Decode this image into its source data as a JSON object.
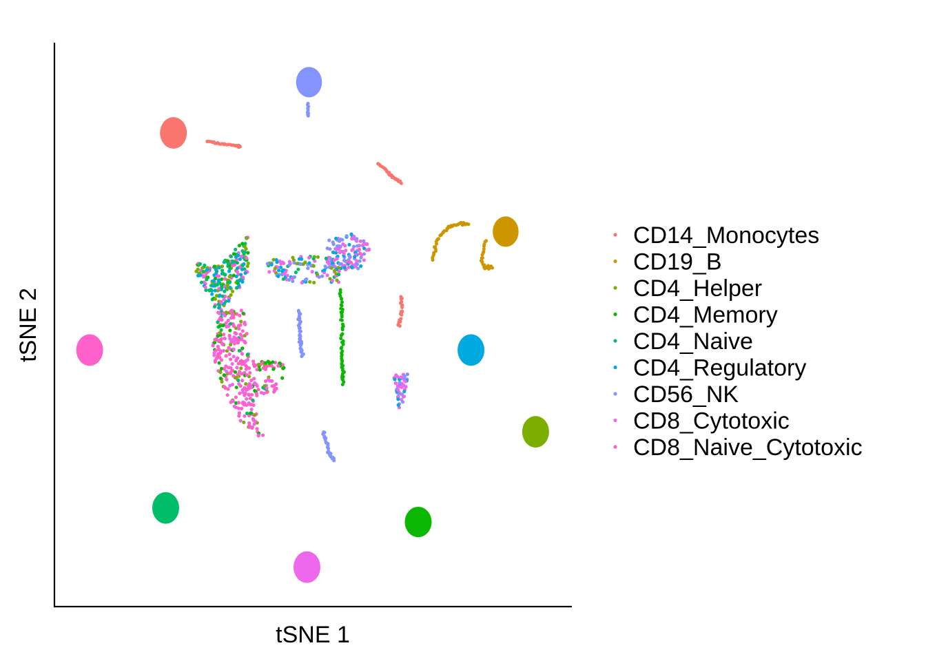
{
  "chart_data": {
    "type": "scatter",
    "xlabel": "tSNE 1",
    "ylabel": "tSNE 2",
    "xlim": [
      0,
      100
    ],
    "ylim": [
      0,
      100
    ],
    "grid": false,
    "ticks": false,
    "legend_position": "right",
    "series": [
      {
        "name": "CD14_Monocytes",
        "color": "#F8766D",
        "blobs": [
          {
            "x": 23,
            "y": 84,
            "rx": 2.6,
            "ry": 2.8
          },
          {
            "type": "curve",
            "points": [
              [
                29.5,
                82.5
              ],
              [
                32,
                82.1
              ],
              [
                35,
                81.7
              ],
              [
                36,
                81.6
              ]
            ],
            "n": 30,
            "spread": 0.25
          },
          {
            "type": "curve",
            "points": [
              [
                62.5,
                78.6
              ],
              [
                64,
                77.4
              ],
              [
                65,
                76.5
              ],
              [
                66,
                75.8
              ],
              [
                67,
                75.2
              ]
            ],
            "n": 30,
            "spread": 0.3
          },
          {
            "type": "curve",
            "points": [
              [
                67,
                55.0
              ],
              [
                67.2,
                53.0
              ],
              [
                66.8,
                51.0
              ],
              [
                66.5,
                50.0
              ]
            ],
            "n": 22,
            "spread": 0.4
          }
        ]
      },
      {
        "name": "CD19_B",
        "color": "#CD9600",
        "blobs": [
          {
            "x": 87.2,
            "y": 66.5,
            "rx": 2.5,
            "ry": 2.7
          },
          {
            "type": "curve",
            "points": [
              [
                73,
                61.5
              ],
              [
                74,
                65.0
              ],
              [
                76,
                67.2
              ],
              [
                78.5,
                68.0
              ],
              [
                80,
                67.8
              ]
            ],
            "n": 45,
            "spread": 0.35
          },
          {
            "type": "curve",
            "points": [
              [
                83.2,
                65.0
              ],
              [
                82.6,
                62.0
              ],
              [
                83.0,
                60.0
              ],
              [
                84.5,
                60.3
              ]
            ],
            "n": 25,
            "spread": 0.35
          }
        ]
      },
      {
        "name": "CD4_Helper",
        "color": "#7CAE00",
        "blobs": [
          {
            "x": 93,
            "y": 31,
            "rx": 2.6,
            "ry": 2.8
          }
        ]
      },
      {
        "name": "CD4_Memory",
        "color": "#0CB702",
        "blobs": [
          {
            "x": 70.3,
            "y": 15,
            "rx": 2.6,
            "ry": 2.7
          },
          {
            "type": "curve",
            "points": [
              [
                55.2,
                56.0
              ],
              [
                55.7,
                50.0
              ],
              [
                55.6,
                44.0
              ],
              [
                55.8,
                39.5
              ]
            ],
            "n": 55,
            "spread": 0.45
          }
        ]
      },
      {
        "name": "CD4_Naive",
        "color": "#00BE67",
        "blobs": [
          {
            "x": 21.5,
            "y": 17.5,
            "rx": 2.6,
            "ry": 2.8
          }
        ]
      },
      {
        "name": "CD4_Regulatory",
        "color": "#00A9DF",
        "blobs": [
          {
            "x": 80.5,
            "y": 45.5,
            "rx": 2.6,
            "ry": 2.8
          }
        ]
      },
      {
        "name": "CD56_NK",
        "color": "#8494FF",
        "blobs": [
          {
            "x": 49.2,
            "y": 93,
            "rx": 2.5,
            "ry": 2.7
          },
          {
            "type": "curve",
            "points": [
              [
                49.0,
                89.2
              ],
              [
                49.1,
                87.0
              ]
            ],
            "n": 10,
            "spread": 0.2
          },
          {
            "type": "curve",
            "points": [
              [
                47.2,
                52.5
              ],
              [
                47.5,
                48.0
              ],
              [
                48.0,
                44.5
              ]
            ],
            "n": 40,
            "spread": 0.45
          },
          {
            "type": "curve",
            "points": [
              [
                52.0,
                31.0
              ],
              [
                53.0,
                27.5
              ],
              [
                54.0,
                26.0
              ]
            ],
            "n": 30,
            "spread": 0.35
          }
        ]
      },
      {
        "name": "CD8_Cytotoxic",
        "color": "#ED68ED",
        "blobs": [
          {
            "x": 48.8,
            "y": 7,
            "rx": 2.6,
            "ry": 2.8
          }
        ]
      },
      {
        "name": "CD8_Naive_Cytotoxic",
        "color": "#FF61CC",
        "blobs": [
          {
            "x": 6.8,
            "y": 45.5,
            "rx": 2.6,
            "ry": 2.8
          }
        ]
      }
    ],
    "mixed_regions": [
      {
        "polygon": [
          [
            26.5,
            61.0
          ],
          [
            32.0,
            60.5
          ],
          [
            36.0,
            64.5
          ],
          [
            37.5,
            66.0
          ],
          [
            37.5,
            58.0
          ],
          [
            34.0,
            55.0
          ],
          [
            32.0,
            50.0
          ],
          [
            30.5,
            54.0
          ],
          [
            28.0,
            58.0
          ]
        ],
        "n": 230,
        "weights": {
          "CD4_Regulatory": 0.28,
          "CD4_Naive": 0.22,
          "CD4_Helper": 0.2,
          "CD4_Memory": 0.1,
          "CD8_Naive_Cytotoxic": 0.12,
          "CD8_Cytotoxic": 0.08
        }
      },
      {
        "polygon": [
          [
            31.5,
            52.0
          ],
          [
            36.5,
            53.0
          ],
          [
            37.5,
            47.0
          ],
          [
            38.0,
            42.0
          ],
          [
            40.0,
            37.5
          ],
          [
            42.5,
            38.0
          ],
          [
            44.5,
            40.5
          ],
          [
            41.0,
            41.0
          ],
          [
            38.5,
            36.0
          ],
          [
            40.5,
            30.0
          ],
          [
            37.0,
            31.0
          ],
          [
            34.0,
            36.0
          ],
          [
            31.0,
            42.0
          ],
          [
            30.5,
            47.0
          ]
        ],
        "n": 330,
        "weights": {
          "CD8_Naive_Cytotoxic": 0.62,
          "CD4_Helper": 0.14,
          "CD4_Memory": 0.1,
          "CD8_Cytotoxic": 0.1,
          "CD4_Naive": 0.04
        }
      },
      {
        "polygon": [
          [
            53.0,
            65.0
          ],
          [
            58.0,
            66.2
          ],
          [
            61.5,
            64.0
          ],
          [
            59.0,
            60.0
          ],
          [
            55.0,
            59.0
          ],
          [
            52.0,
            60.0
          ]
        ],
        "n": 130,
        "weights": {
          "CD56_NK": 0.42,
          "CD8_Cytotoxic": 0.38,
          "CD8_Naive_Cytotoxic": 0.1,
          "CD4_Regulatory": 0.1
        }
      },
      {
        "polygon": [
          [
            41.0,
            61.5
          ],
          [
            49.5,
            62.5
          ],
          [
            55.0,
            61.5
          ],
          [
            55.0,
            57.5
          ],
          [
            50.0,
            57.0
          ],
          [
            44.0,
            58.0
          ],
          [
            41.5,
            58.5
          ]
        ],
        "n": 110,
        "weights": {
          "CD8_Cytotoxic": 0.3,
          "CD4_Regulatory": 0.25,
          "CD56_NK": 0.15,
          "CD4_Helper": 0.15,
          "CD4_Naive": 0.15
        }
      },
      {
        "polygon": [
          [
            65.5,
            41.0
          ],
          [
            68.5,
            41.5
          ],
          [
            67.5,
            36.5
          ],
          [
            66.5,
            35.0
          ],
          [
            66.0,
            38.0
          ]
        ],
        "n": 55,
        "weights": {
          "CD8_Cytotoxic": 0.55,
          "CD4_Regulatory": 0.2,
          "CD56_NK": 0.25
        }
      },
      {
        "polygon": [
          [
            38.0,
            43.5
          ],
          [
            44.0,
            43.5
          ],
          [
            44.5,
            42.0
          ],
          [
            39.0,
            41.5
          ]
        ],
        "n": 40,
        "weights": {
          "CD8_Naive_Cytotoxic": 0.5,
          "CD4_Memory": 0.3,
          "CD4_Helper": 0.2
        }
      }
    ]
  }
}
